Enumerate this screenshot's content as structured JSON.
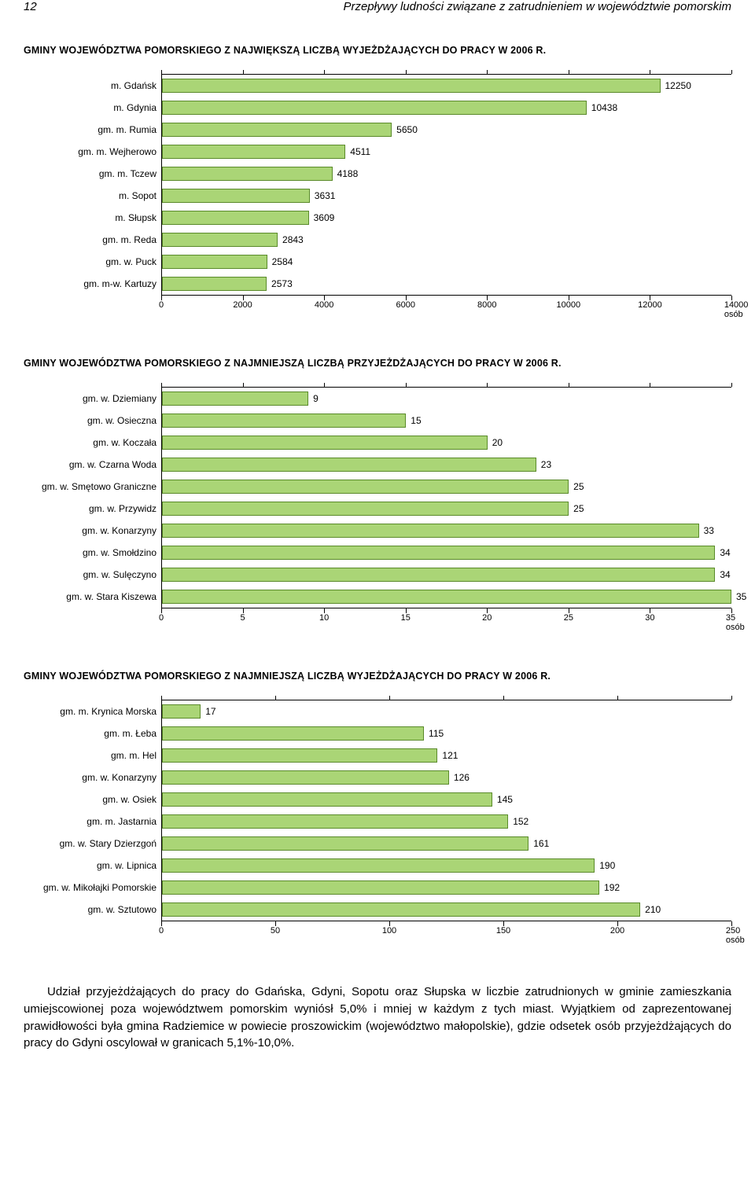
{
  "header": {
    "page_number": "12",
    "title": "Przepływy ludności związane z zatrudnieniem w województwie pomorskim"
  },
  "charts": [
    {
      "title": "GMINY WOJEWÓDZTWA POMORSKIEGO Z NAJWIĘKSZĄ LICZBĄ WYJEŻDŻAJĄCYCH DO PRACY W 2006 R.",
      "bar_color": "#aad576",
      "border_color": "#5a8a2a",
      "xmax": 14000,
      "unit": "osób",
      "ticks": [
        0,
        2000,
        4000,
        6000,
        8000,
        10000,
        12000,
        14000
      ],
      "rows": [
        {
          "label": "m. Gdańsk",
          "value": 12250
        },
        {
          "label": "m. Gdynia",
          "value": 10438
        },
        {
          "label": "gm. m. Rumia",
          "value": 5650
        },
        {
          "label": "gm. m. Wejherowo",
          "value": 4511
        },
        {
          "label": "gm. m. Tczew",
          "value": 4188
        },
        {
          "label": "m. Sopot",
          "value": 3631
        },
        {
          "label": "m. Słupsk",
          "value": 3609
        },
        {
          "label": "gm. m. Reda",
          "value": 2843
        },
        {
          "label": "gm. w. Puck",
          "value": 2584
        },
        {
          "label": "gm. m-w. Kartuzy",
          "value": 2573
        }
      ]
    },
    {
      "title": "GMINY WOJEWÓDZTWA POMORSKIEGO Z NAJMNIEJSZĄ LICZBĄ PRZYJEŻDŻAJĄCYCH DO PRACY W 2006 R.",
      "bar_color": "#aad576",
      "border_color": "#5a8a2a",
      "xmax": 35,
      "unit": "osób",
      "ticks": [
        0,
        5,
        10,
        15,
        20,
        25,
        30,
        35
      ],
      "rows": [
        {
          "label": "gm. w. Dziemiany",
          "value": 9
        },
        {
          "label": "gm. w. Osieczna",
          "value": 15
        },
        {
          "label": "gm. w. Koczała",
          "value": 20
        },
        {
          "label": "gm. w. Czarna Woda",
          "value": 23
        },
        {
          "label": "gm. w. Smętowo Graniczne",
          "value": 25
        },
        {
          "label": "gm. w. Przywidz",
          "value": 25
        },
        {
          "label": "gm. w. Konarzyny",
          "value": 33
        },
        {
          "label": "gm. w. Smołdzino",
          "value": 34
        },
        {
          "label": "gm. w. Sulęczyno",
          "value": 34
        },
        {
          "label": "gm. w. Stara Kiszewa",
          "value": 35
        }
      ]
    },
    {
      "title": "GMINY WOJEWÓDZTWA POMORSKIEGO Z NAJMNIEJSZĄ LICZBĄ WYJEŻDŻAJĄCYCH DO PRACY W 2006 R.",
      "bar_color": "#aad576",
      "border_color": "#5a8a2a",
      "xmax": 250,
      "unit": "osób",
      "ticks": [
        0,
        50,
        100,
        150,
        200,
        250
      ],
      "rows": [
        {
          "label": "gm. m. Krynica Morska",
          "value": 17
        },
        {
          "label": "gm. m. Łeba",
          "value": 115
        },
        {
          "label": "gm. m. Hel",
          "value": 121
        },
        {
          "label": "gm. w. Konarzyny",
          "value": 126
        },
        {
          "label": "gm. w. Osiek",
          "value": 145
        },
        {
          "label": "gm. m. Jastarnia",
          "value": 152
        },
        {
          "label": "gm. w. Stary Dzierzgoń",
          "value": 161
        },
        {
          "label": "gm. w. Lipnica",
          "value": 190
        },
        {
          "label": "gm. w. Mikołajki Pomorskie",
          "value": 192
        },
        {
          "label": "gm. w. Sztutowo",
          "value": 210
        }
      ]
    }
  ],
  "paragraph": "Udział przyjeżdżających do pracy do Gdańska, Gdyni, Sopotu oraz Słupska w liczbie zatrudnionych w gminie zamieszkania umiejscowionej poza województwem pomorskim wyniósł 5,0% i mniej w każdym z tych miast. Wyjątkiem od zaprezentowanej prawidłowości była gmina Radziemice w powiecie proszowickim (województwo małopolskie), gdzie odsetek osób przyjeżdżających do pracy do Gdyni oscylował w granicach 5,1%-10,0%."
}
